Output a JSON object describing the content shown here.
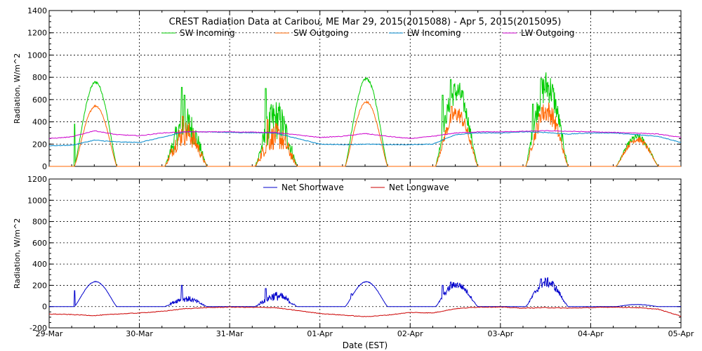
{
  "chart_data": [
    {
      "type": "line",
      "title": "CREST Radiation Data at Caribou, ME   Mar 29, 2015(2015088) - Apr  5, 2015(2015095)",
      "ylabel": "Radiation, W/m^2",
      "ylim": [
        0,
        1400
      ],
      "yticks": [
        0,
        200,
        400,
        600,
        800,
        1000,
        1200,
        1400
      ],
      "xlim": [
        "2015-03-29",
        "2015-04-05"
      ],
      "grid": true,
      "legend_position": "top",
      "series": [
        {
          "name": "SW Incoming",
          "color": "#00cc00",
          "kind": "sw",
          "days": [
            {
              "peak": 760,
              "noise": 0.02,
              "spikes": [
                [
                  0.28,
                  380
                ]
              ]
            },
            {
              "peak": 420,
              "noise": 0.45,
              "spikes": [
                [
                  0.47,
                  710
                ],
                [
                  0.5,
                  640
                ]
              ]
            },
            {
              "peak": 470,
              "noise": 0.5,
              "spikes": [
                [
                  0.4,
                  700
                ],
                [
                  0.46,
                  520
                ]
              ]
            },
            {
              "peak": 790,
              "noise": 0.02,
              "spikes": [
                [
                  0.35,
                  300
                ]
              ]
            },
            {
              "peak": 700,
              "noise": 0.2,
              "spikes": [
                [
                  0.36,
                  640
                ],
                [
                  0.45,
                  780
                ]
              ]
            },
            {
              "peak": 760,
              "noise": 0.25,
              "spikes": [
                [
                  0.36,
                  560
                ],
                [
                  0.45,
                  790
                ]
              ]
            },
            {
              "peak": 270,
              "noise": 0.15,
              "spikes": []
            }
          ]
        },
        {
          "name": "SW Outgoing",
          "color": "#ff6600",
          "kind": "sw",
          "days": [
            {
              "peak": 545,
              "noise": 0.02,
              "spikes": []
            },
            {
              "peak": 330,
              "noise": 0.45,
              "spikes": [
                [
                  0.48,
                  450
                ]
              ]
            },
            {
              "peak": 300,
              "noise": 0.5,
              "spikes": [
                [
                  0.42,
                  420
                ]
              ]
            },
            {
              "peak": 580,
              "noise": 0.02,
              "spikes": []
            },
            {
              "peak": 490,
              "noise": 0.2,
              "spikes": [
                [
                  0.46,
                  540
                ]
              ]
            },
            {
              "peak": 520,
              "noise": 0.25,
              "spikes": [
                [
                  0.46,
                  530
                ]
              ]
            },
            {
              "peak": 250,
              "noise": 0.15,
              "spikes": []
            }
          ]
        },
        {
          "name": "LW Incoming",
          "color": "#0088cc",
          "kind": "points",
          "x": [
            0,
            0.25,
            0.5,
            0.75,
            1.0,
            1.25,
            1.5,
            1.75,
            2.0,
            2.5,
            3.0,
            3.25,
            3.5,
            3.75,
            4.0,
            4.25,
            4.5,
            4.75,
            5.0,
            5.25,
            5.5,
            5.75,
            6.0,
            6.25,
            6.5,
            6.75,
            7.0
          ],
          "y": [
            185,
            190,
            235,
            220,
            215,
            260,
            310,
            310,
            305,
            300,
            200,
            195,
            200,
            195,
            195,
            200,
            285,
            300,
            300,
            310,
            305,
            290,
            300,
            300,
            285,
            270,
            215
          ]
        },
        {
          "name": "LW Outgoing",
          "color": "#cc00cc",
          "kind": "points",
          "x": [
            0,
            0.25,
            0.5,
            0.75,
            1.0,
            1.25,
            1.5,
            1.75,
            2.0,
            2.5,
            3.0,
            3.25,
            3.5,
            3.75,
            4.0,
            4.25,
            4.5,
            4.75,
            5.0,
            5.25,
            5.5,
            5.75,
            6.0,
            6.25,
            6.5,
            6.75,
            7.0
          ],
          "y": [
            250,
            265,
            320,
            285,
            275,
            300,
            310,
            310,
            310,
            305,
            260,
            270,
            295,
            270,
            250,
            270,
            300,
            310,
            310,
            315,
            320,
            315,
            310,
            305,
            300,
            290,
            260
          ]
        }
      ]
    },
    {
      "type": "line",
      "ylabel": "Radiation, W/m^2",
      "xlabel": "Date (EST)",
      "ylim": [
        -200,
        1200
      ],
      "yticks": [
        -200,
        0,
        200,
        400,
        600,
        800,
        1000,
        1200
      ],
      "x_tick_labels": [
        "29-Mar",
        "30-Mar",
        "31-Mar",
        "01-Apr",
        "02-Apr",
        "03-Apr",
        "04-Apr",
        "05-Apr"
      ],
      "grid": true,
      "legend_position": "top",
      "series": [
        {
          "name": "Net Shortwave",
          "color": "#0000cc",
          "kind": "sw",
          "days": [
            {
              "peak": 235,
              "noise": 0.02,
              "spikes": [
                [
                  0.28,
                  150
                ]
              ]
            },
            {
              "peak": 80,
              "noise": 0.45,
              "spikes": [
                [
                  0.47,
                  200
                ]
              ]
            },
            {
              "peak": 110,
              "noise": 0.5,
              "spikes": [
                [
                  0.4,
                  170
                ]
              ]
            },
            {
              "peak": 235,
              "noise": 0.02,
              "spikes": [
                [
                  0.35,
                  120
                ]
              ]
            },
            {
              "peak": 215,
              "noise": 0.2,
              "spikes": [
                [
                  0.36,
                  200
                ],
                [
                  0.45,
                  230
                ]
              ]
            },
            {
              "peak": 240,
              "noise": 0.25,
              "spikes": [
                [
                  0.45,
                  260
                ]
              ]
            },
            {
              "peak": 20,
              "noise": 0.15,
              "spikes": []
            }
          ]
        },
        {
          "name": "Net Longwave",
          "color": "#cc0000",
          "kind": "points",
          "x": [
            0,
            0.25,
            0.5,
            0.75,
            1.0,
            1.25,
            1.5,
            1.75,
            2.0,
            2.5,
            3.0,
            3.25,
            3.5,
            3.75,
            4.0,
            4.25,
            4.5,
            4.75,
            5.0,
            5.25,
            5.5,
            5.75,
            6.0,
            6.25,
            6.5,
            6.75,
            7.0
          ],
          "y": [
            -70,
            -75,
            -85,
            -70,
            -60,
            -45,
            -20,
            -10,
            -5,
            -10,
            -65,
            -80,
            -95,
            -80,
            -55,
            -60,
            -20,
            -5,
            -5,
            -15,
            -10,
            -15,
            -10,
            -5,
            -10,
            -25,
            -90
          ]
        }
      ]
    }
  ]
}
